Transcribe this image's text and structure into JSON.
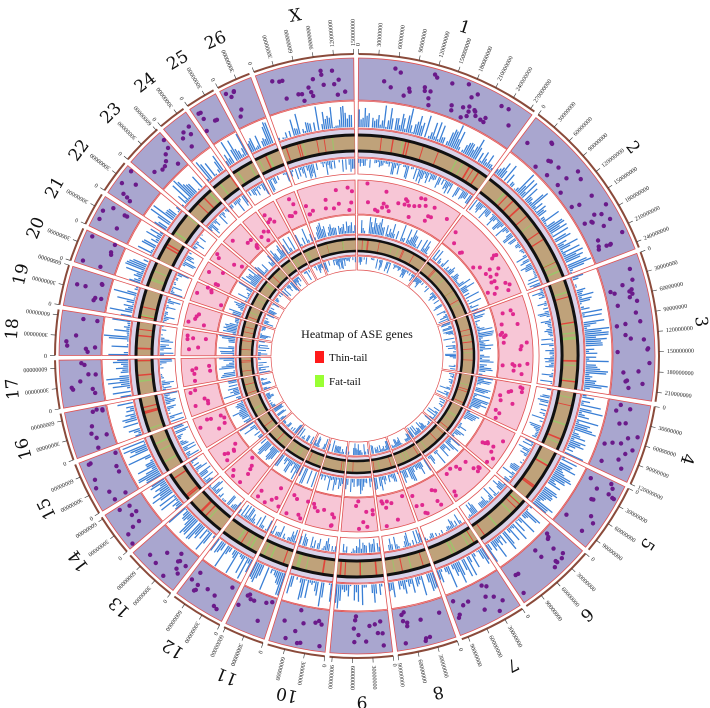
{
  "chart_data": {
    "type": "circos",
    "title": "",
    "legend": {
      "title": "Heatmap of ASE genes",
      "placement": "center",
      "items": [
        {
          "label": "Thin-tail",
          "color": "#ff1a1a"
        },
        {
          "label": "Fat-tail",
          "color": "#99ff33"
        }
      ]
    },
    "chromosomes": [
      {
        "name": "1",
        "length": 277000000,
        "ticks": [
          "0",
          "30000000",
          "60000000",
          "90000000",
          "120000000",
          "150000000",
          "180000000",
          "210000000",
          "240000000",
          "270000000"
        ]
      },
      {
        "name": "2",
        "length": 249000000,
        "ticks": [
          "0",
          "30000000",
          "60000000",
          "90000000",
          "120000000",
          "150000000",
          "180000000",
          "210000000",
          "240000000"
        ]
      },
      {
        "name": "3",
        "length": 224000000,
        "ticks": [
          "0",
          "30000000",
          "60000000",
          "90000000",
          "120000000",
          "150000000",
          "180000000",
          "210000000",
          "240000000"
        ]
      },
      {
        "name": "4",
        "length": 120000000,
        "ticks": [
          "0",
          "30000000",
          "60000000",
          "90000000",
          "120000000"
        ]
      },
      {
        "name": "5",
        "length": 108000000,
        "ticks": [
          "0",
          "30000000",
          "60000000",
          "90000000"
        ]
      },
      {
        "name": "6",
        "length": 117000000,
        "ticks": [
          "0",
          "30000000",
          "60000000",
          "90000000",
          "120000000"
        ]
      },
      {
        "name": "7",
        "length": 100000000,
        "ticks": [
          "0",
          "30000000",
          "60000000",
          "90000000"
        ]
      },
      {
        "name": "8",
        "length": 90000000,
        "ticks": [
          "0",
          "30000000",
          "60000000",
          "90000000"
        ]
      },
      {
        "name": "9",
        "length": 94000000,
        "ticks": [
          "0",
          "30000000",
          "60000000",
          "90000000"
        ]
      },
      {
        "name": "10",
        "length": 86000000,
        "ticks": [
          "0",
          "30000000",
          "60000000"
        ]
      },
      {
        "name": "11",
        "length": 62000000,
        "ticks": [
          "0",
          "30000000",
          "60000000"
        ]
      },
      {
        "name": "12",
        "length": 79000000,
        "ticks": [
          "0",
          "30000000",
          "60000000"
        ]
      },
      {
        "name": "13",
        "length": 82000000,
        "ticks": [
          "0",
          "30000000",
          "60000000"
        ]
      },
      {
        "name": "14",
        "length": 63000000,
        "ticks": [
          "0",
          "30000000",
          "60000000"
        ]
      },
      {
        "name": "15",
        "length": 80000000,
        "ticks": [
          "0",
          "30000000",
          "60000000"
        ]
      },
      {
        "name": "16",
        "length": 71000000,
        "ticks": [
          "0",
          "30000000",
          "60000000"
        ]
      },
      {
        "name": "17",
        "length": 72000000,
        "ticks": [
          "0",
          "30000000",
          "60000000"
        ]
      },
      {
        "name": "18",
        "length": 68000000,
        "ticks": [
          "0",
          "30000000",
          "60000000"
        ]
      },
      {
        "name": "19",
        "length": 60000000,
        "ticks": [
          "0",
          "30000000",
          "60000000"
        ]
      },
      {
        "name": "20",
        "length": 51000000,
        "ticks": [
          "0",
          "30000000"
        ]
      },
      {
        "name": "21",
        "length": 50000000,
        "ticks": [
          "0",
          "30000000"
        ]
      },
      {
        "name": "22",
        "length": 50000000,
        "ticks": [
          "0",
          "30000000"
        ]
      },
      {
        "name": "23",
        "length": 62000000,
        "ticks": [
          "0",
          "30000000",
          "60000000"
        ]
      },
      {
        "name": "24",
        "length": 42000000,
        "ticks": [
          "0",
          "30000000"
        ]
      },
      {
        "name": "25",
        "length": 45000000,
        "ticks": [
          "0",
          "30000000"
        ]
      },
      {
        "name": "26",
        "length": 51000000,
        "ticks": [
          "0",
          "30000000"
        ]
      },
      {
        "name": "X",
        "length": 150000000,
        "ticks": [
          "0",
          "30000000",
          "60000000",
          "90000000",
          "120000000",
          "150000000"
        ]
      }
    ],
    "tracks": [
      {
        "kind": "scatter",
        "ring": "outer",
        "fill": "#a9a6cf",
        "dot": "#6a1a8a"
      },
      {
        "kind": "histogram",
        "ring": "outer",
        "color": "#3a7fd5"
      },
      {
        "kind": "heatmap",
        "ring": "outer",
        "band": "#c8b89a"
      },
      {
        "kind": "scatter",
        "ring": "inner",
        "fill": "#f7c6d6",
        "dot": "#e0288f"
      },
      {
        "kind": "histogram",
        "ring": "inner",
        "color": "#3a7fd5"
      },
      {
        "kind": "heatmap",
        "ring": "inner",
        "band": "#c8b89a"
      }
    ],
    "colors": {
      "tick_ring": "#8a4a3a",
      "heat_red": "#e0443a",
      "heat_green": "#9cc46a",
      "heat_tan": "#bfa27a",
      "border": "#e05050"
    }
  }
}
